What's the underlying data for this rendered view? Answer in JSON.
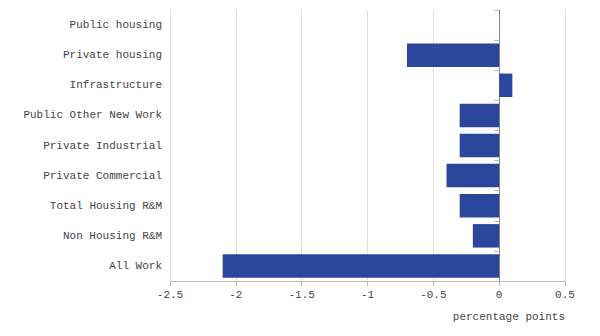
{
  "chart_data": {
    "type": "bar",
    "orientation": "horizontal",
    "categories": [
      "Public housing",
      "Private housing",
      "Infrastructure",
      "Public Other New Work",
      "Private Industrial",
      "Private Commercial",
      "Total Housing R&M",
      "Non Housing R&M",
      "All Work"
    ],
    "values": [
      0,
      -0.7,
      0.1,
      -0.3,
      -0.3,
      -0.4,
      -0.3,
      -0.2,
      -2.1
    ],
    "color": "#2b479b",
    "xlabel": "percentage points",
    "xlim": [
      -2.5,
      0.5
    ],
    "xticks": [
      -2.5,
      -2,
      -1.5,
      -1,
      -0.5,
      0,
      0.5
    ],
    "grid": true
  }
}
